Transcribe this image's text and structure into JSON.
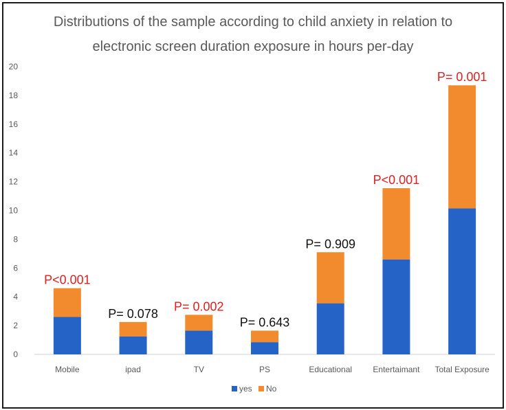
{
  "chart_data": {
    "type": "bar",
    "stacked": true,
    "title_lines": [
      "Distributions of the sample according to child anxiety in relation to",
      "electronic screen duration exposure in hours per-day"
    ],
    "categories": [
      "Mobile",
      "ipad",
      "TV",
      "PS",
      "Educational",
      "Entertaimant",
      "Total Exposure"
    ],
    "series": [
      {
        "name": "yes",
        "color": "#2563c7",
        "values": [
          2.6,
          1.25,
          1.65,
          0.85,
          3.55,
          6.6,
          10.15
        ]
      },
      {
        "name": "No",
        "color": "#f28a2e",
        "values": [
          2.0,
          1.0,
          1.1,
          0.8,
          3.55,
          4.95,
          8.55
        ]
      }
    ],
    "annotations": [
      {
        "text": "P<0.001",
        "color": "#e02020"
      },
      {
        "text": "P= 0.078",
        "color": "#111111"
      },
      {
        "text": "P= 0.002",
        "color": "#e02020"
      },
      {
        "text": "P= 0.643",
        "color": "#111111"
      },
      {
        "text": "P= 0.909",
        "color": "#111111"
      },
      {
        "text": "P<0.001",
        "color": "#e02020"
      },
      {
        "text": "P= 0.001",
        "color": "#e02020"
      }
    ],
    "yticks": [
      "0",
      "2",
      "4",
      "6",
      "8",
      "10",
      "12",
      "14",
      "16",
      "18",
      "20"
    ],
    "ylim": [
      0,
      20
    ],
    "xlabel": "",
    "ylabel": "",
    "legend_position": "bottom",
    "gridlines": false
  }
}
